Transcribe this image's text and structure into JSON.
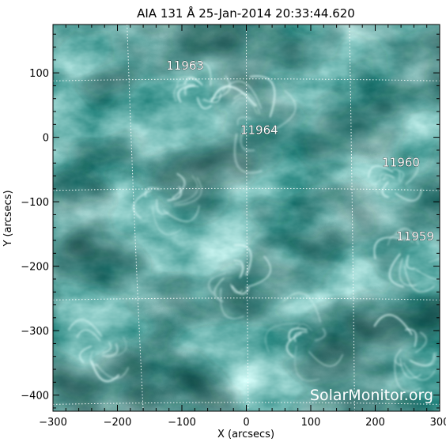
{
  "figure": {
    "title": "AIA 131 Å 25-Jan-2014 20:33:44.620",
    "xlabel": "X (arcsecs)",
    "ylabel": "Y (arcsecs)",
    "watermark": "SolarMonitor.org",
    "xlim": [
      -300,
      300
    ],
    "ylim": [
      -425,
      175
    ],
    "x_ticks": [
      -300,
      -200,
      -100,
      0,
      100,
      200,
      300
    ],
    "y_ticks": [
      100,
      0,
      -100,
      -200,
      -300,
      -400
    ],
    "x_tick_labels": [
      "−300",
      "−200",
      "−100",
      "0",
      "100",
      "200",
      "300"
    ],
    "y_tick_labels": [
      "100",
      "0",
      "−100",
      "−200",
      "−300",
      "−400"
    ],
    "colors": {
      "image_base": "#1f8c86",
      "image_dark": "#0a3a36",
      "image_bright": "#cffffb",
      "grid": "#ffffff",
      "text": "#000000"
    }
  },
  "active_regions": [
    {
      "number": "11963",
      "x": -95,
      "y": 100
    },
    {
      "number": "11964",
      "x": 20,
      "y": 0
    },
    {
      "number": "11960",
      "x": 240,
      "y": -50
    },
    {
      "number": "11959",
      "x": 262,
      "y": -165
    }
  ]
}
